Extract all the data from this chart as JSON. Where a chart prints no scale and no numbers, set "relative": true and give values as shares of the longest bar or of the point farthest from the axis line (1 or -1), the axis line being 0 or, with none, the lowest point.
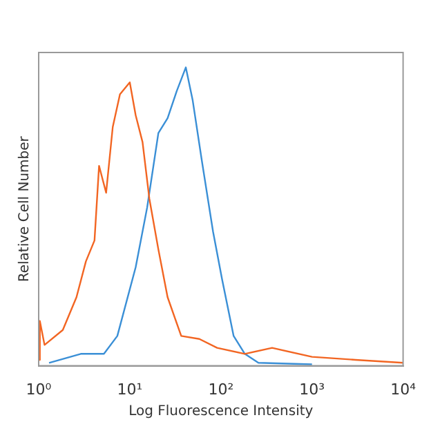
{
  "chart_data": {
    "type": "line",
    "xlabel": "Log Fluorescence Intensity",
    "ylabel": "Relative Cell Number",
    "relative": true,
    "log": "x",
    "xlim": [
      1,
      10000
    ],
    "xticks": [
      {
        "value": 1,
        "label": "10⁰"
      },
      {
        "value": 10,
        "label": "10¹"
      },
      {
        "value": 100,
        "label": "10²"
      },
      {
        "value": 1000,
        "label": "10³"
      },
      {
        "value": 10000,
        "label": "10⁴"
      }
    ],
    "grid": false,
    "legend": false,
    "marker": "none",
    "series": [
      {
        "color": "#f26522",
        "x": [
          1,
          1.03,
          1.16,
          1.84,
          2.6,
          3.3,
          4.1,
          4.6,
          5.5,
          6.5,
          7.8,
          10,
          11.6,
          13.8,
          16.4,
          20.6,
          26,
          36.7,
          58,
          91,
          183,
          365,
          1000,
          3000,
          10000
        ],
        "values": [
          0.02,
          0.15,
          0.07,
          0.12,
          0.23,
          0.35,
          0.42,
          0.67,
          0.58,
          0.8,
          0.91,
          0.95,
          0.84,
          0.75,
          0.56,
          0.39,
          0.23,
          0.1,
          0.09,
          0.06,
          0.04,
          0.06,
          0.03,
          0.02,
          0.01
        ]
      },
      {
        "color": "#3a8fd6",
        "x": [
          1.3,
          2.9,
          5.2,
          7.3,
          11.6,
          15.5,
          20.6,
          26,
          32.7,
          41.2,
          49,
          61.6,
          82,
          103,
          138,
          183,
          258,
          1000
        ],
        "values": [
          0.01,
          0.04,
          0.04,
          0.1,
          0.33,
          0.53,
          0.78,
          0.83,
          0.92,
          1,
          0.89,
          0.69,
          0.45,
          0.29,
          0.1,
          0.04,
          0.01,
          0.005
        ]
      }
    ]
  }
}
